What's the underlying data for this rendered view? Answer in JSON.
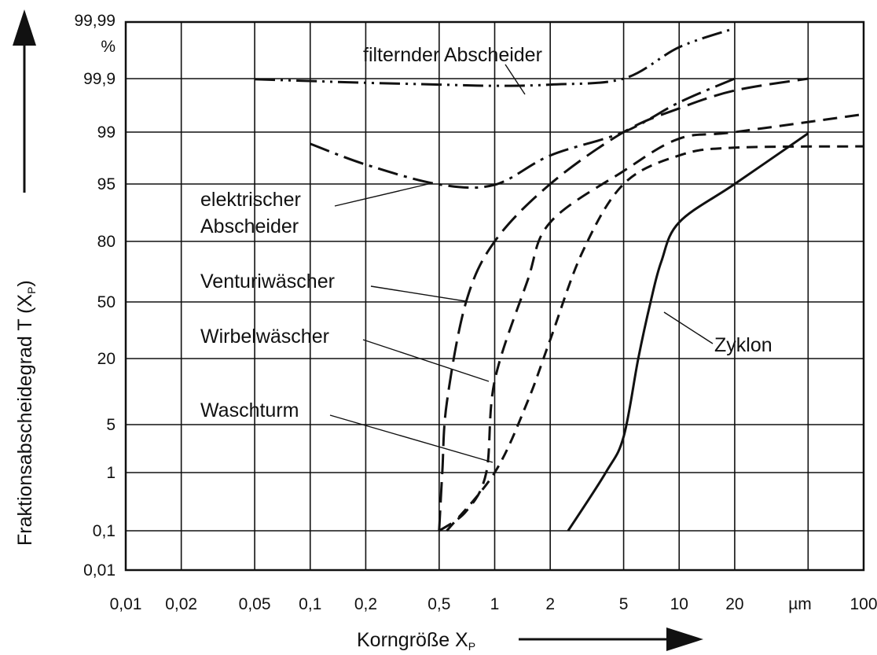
{
  "chart_data": {
    "type": "line",
    "x_scale": "log",
    "y_scale": "probability",
    "xlim": [
      0.01,
      100
    ],
    "ylim": [
      0.01,
      99.99
    ],
    "grid": true,
    "xlabel": "Korngröße X",
    "xlabel_sub": "P",
    "ylabel": "Fraktionsabscheidegrad T (X",
    "ylabel_sub": "P",
    "ylabel_end": ")",
    "y_unit": "%",
    "x_unit": "µm",
    "x_ticks": [
      {
        "value": 0.01,
        "label": "0,01"
      },
      {
        "value": 0.02,
        "label": "0,02"
      },
      {
        "value": 0.05,
        "label": "0,05"
      },
      {
        "value": 0.1,
        "label": "0,1"
      },
      {
        "value": 0.2,
        "label": "0,2"
      },
      {
        "value": 0.5,
        "label": "0,5"
      },
      {
        "value": 1,
        "label": "1"
      },
      {
        "value": 2,
        "label": "2"
      },
      {
        "value": 5,
        "label": "5"
      },
      {
        "value": 10,
        "label": "10"
      },
      {
        "value": 20,
        "label": "20"
      },
      {
        "value": 100,
        "label": "100"
      }
    ],
    "y_ticks": [
      {
        "value": 0.01,
        "label": "0,01"
      },
      {
        "value": 0.1,
        "label": "0,1"
      },
      {
        "value": 1,
        "label": "1"
      },
      {
        "value": 5,
        "label": "5"
      },
      {
        "value": 20,
        "label": "20"
      },
      {
        "value": 50,
        "label": "50"
      },
      {
        "value": 80,
        "label": "80"
      },
      {
        "value": 95,
        "label": "95"
      },
      {
        "value": 99,
        "label": "99"
      },
      {
        "value": 99.9,
        "label": "99,9"
      },
      {
        "value": 99.99,
        "label": "99,99"
      }
    ],
    "series": [
      {
        "name": "filternder Abscheider",
        "label_lines": [
          "filternder Abscheider"
        ],
        "dash": "long-double-dot",
        "x": [
          0.05,
          0.1,
          0.2,
          0.5,
          1,
          2,
          5,
          10,
          20
        ],
        "y": [
          99.89,
          99.86,
          99.83,
          99.8,
          99.78,
          99.8,
          99.9,
          99.95,
          99.98
        ]
      },
      {
        "name": "elektrischer Abscheider",
        "label_lines": [
          "elektrischer",
          "Abscheider"
        ],
        "dash": "dash-dot",
        "x": [
          0.1,
          0.2,
          0.5,
          1,
          2,
          5,
          10,
          20
        ],
        "y": [
          98.1,
          96.5,
          94.9,
          94.8,
          97.2,
          99.0,
          99.5,
          99.9
        ]
      },
      {
        "name": "Venturiwäscher",
        "label_lines": [
          "Venturiwäscher"
        ],
        "dash": "long-dash",
        "x": [
          0.5,
          0.52,
          0.55,
          0.7,
          1,
          2,
          5,
          10,
          20,
          50
        ],
        "y": [
          0.1,
          1,
          10,
          50,
          80,
          95,
          99.0,
          99.4,
          99.7,
          99.9
        ]
      },
      {
        "name": "Wirbelwäscher",
        "label_lines": [
          "Wirbelwäscher"
        ],
        "dash": "dash",
        "x": [
          0.5,
          0.7,
          0.9,
          1,
          1.5,
          2,
          5,
          10,
          20,
          100
        ],
        "y": [
          0.1,
          0.4,
          1,
          15,
          60,
          85,
          96,
          98.5,
          99.0,
          99.3
        ]
      },
      {
        "name": "Waschturm",
        "label_lines": [
          "Waschturm"
        ],
        "dash": "short-dash",
        "x": [
          0.55,
          1,
          1.5,
          2,
          3,
          5,
          10,
          20,
          100
        ],
        "y": [
          0.1,
          1,
          10,
          30,
          75,
          95,
          97.2,
          97.8,
          97.9
        ]
      },
      {
        "name": "Zyklon",
        "label_lines": [
          "Zyklon"
        ],
        "dash": "solid",
        "x": [
          2.5,
          4,
          5,
          6,
          7,
          8,
          10,
          20,
          50
        ],
        "y": [
          0.1,
          1,
          4,
          20,
          50,
          70,
          85,
          95,
          98.9
        ]
      }
    ]
  }
}
